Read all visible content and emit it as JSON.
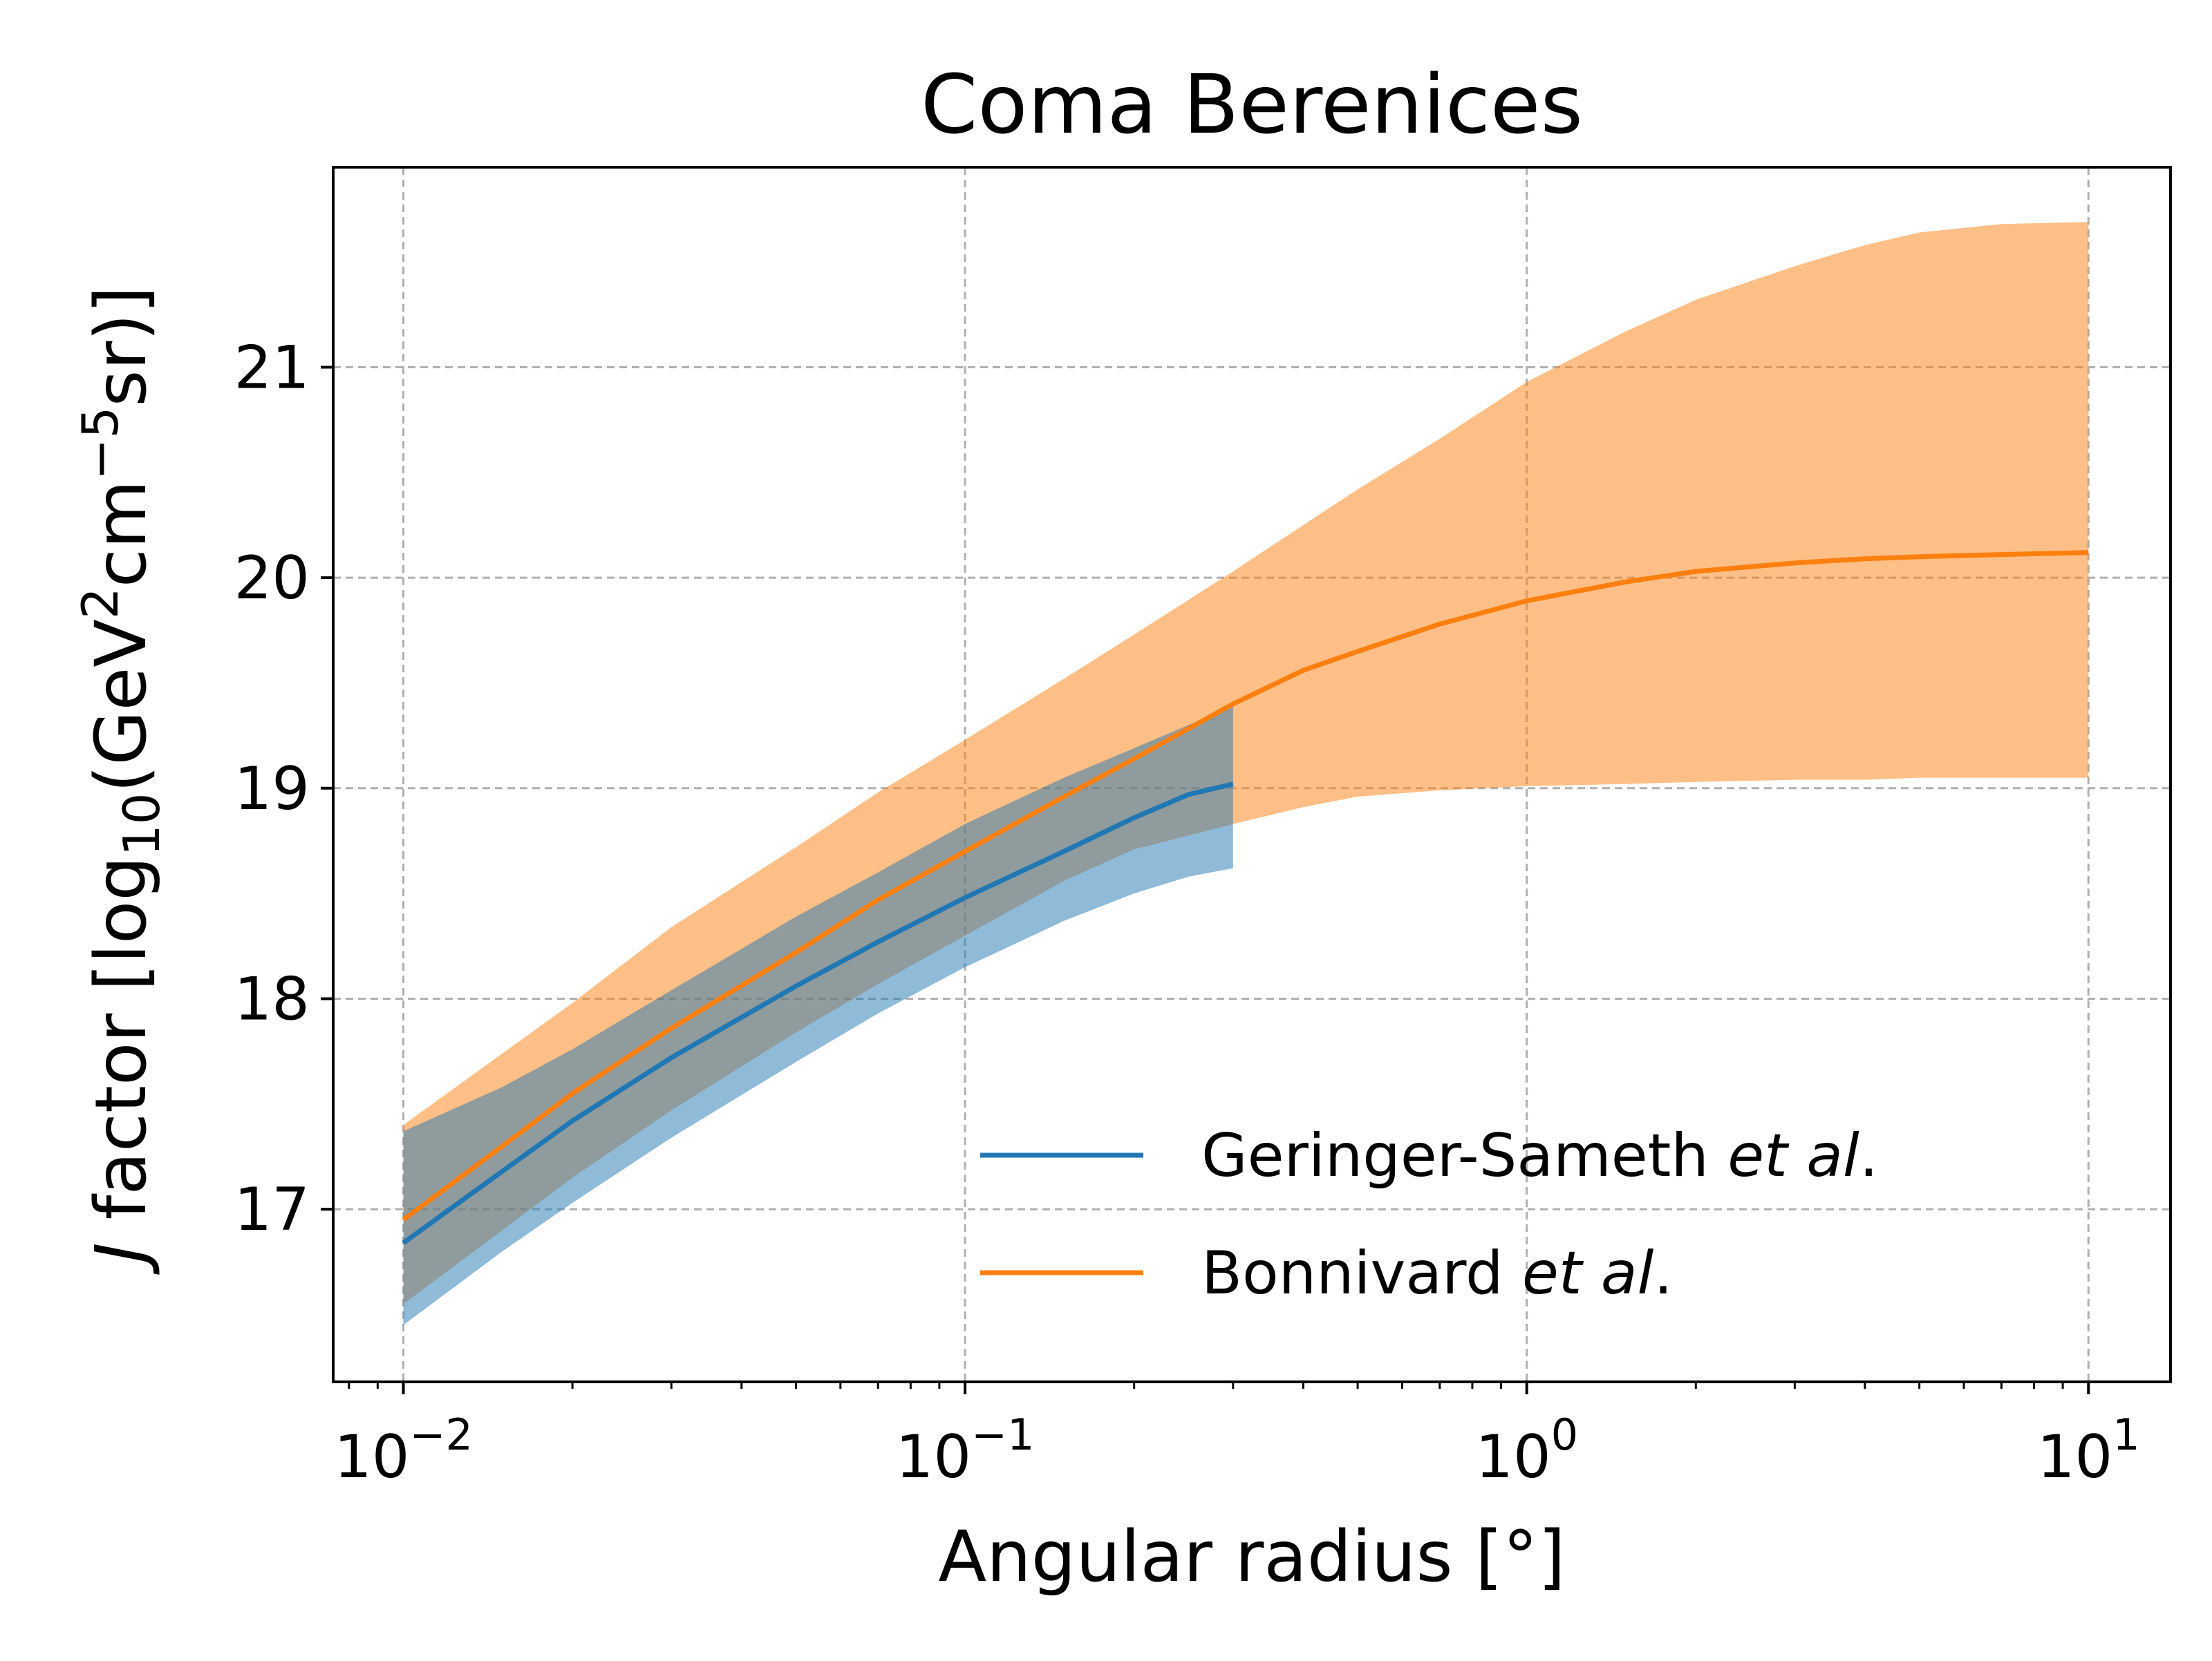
{
  "chart_data": {
    "type": "line",
    "title": "Coma Berenices",
    "xlabel": "Angular radius [°]",
    "ylabel": "J factor [log10(GeV2cm−5sr)]",
    "ylabel_parts": {
      "j": "J",
      "pre": " factor [log",
      "sub": "10",
      "mid1": "(GeV",
      "sup1": "2",
      "mid2": "cm",
      "sup2": "−5",
      "post": "sr)]"
    },
    "xscale": "log",
    "xlim": [
      0.0075,
      14
    ],
    "ylim": [
      16.18,
      21.95
    ],
    "grid": true,
    "legend_position": "lower right",
    "xticks": [
      {
        "value": 0.01,
        "base": "10",
        "exp": "−2"
      },
      {
        "value": 0.1,
        "base": "10",
        "exp": "−1"
      },
      {
        "value": 1,
        "base": "10",
        "exp": "0"
      },
      {
        "value": 10,
        "base": "10",
        "exp": "1"
      }
    ],
    "yticks": [
      17,
      18,
      19,
      20,
      21
    ],
    "series": [
      {
        "name": "Geringer-Sameth et al.",
        "legend_plain": "Geringer-Sameth ",
        "legend_italic": "et al",
        "legend_suffix": ".",
        "color": "#1f77b4",
        "band_color": "#1f77b4",
        "band_opacity": 0.5,
        "x": [
          0.01,
          0.015,
          0.02,
          0.03,
          0.05,
          0.07,
          0.1,
          0.15,
          0.2,
          0.25,
          0.3
        ],
        "y": [
          16.84,
          17.18,
          17.42,
          17.72,
          18.06,
          18.27,
          18.48,
          18.7,
          18.86,
          18.97,
          19.02
        ],
        "y_low": [
          16.45,
          16.8,
          17.03,
          17.34,
          17.7,
          17.93,
          18.15,
          18.37,
          18.5,
          18.58,
          18.62
        ],
        "y_high": [
          17.37,
          17.58,
          17.76,
          18.04,
          18.39,
          18.6,
          18.83,
          19.05,
          19.19,
          19.3,
          19.39
        ]
      },
      {
        "name": "Bonnivard et al.",
        "legend_plain": "Bonnivard ",
        "legend_italic": "et al",
        "legend_suffix": ".",
        "color": "#ff7f0e",
        "band_color": "#ff7f0e",
        "band_opacity": 0.5,
        "x": [
          0.01,
          0.015,
          0.02,
          0.03,
          0.05,
          0.07,
          0.1,
          0.15,
          0.2,
          0.3,
          0.4,
          0.5,
          0.7,
          1.0,
          1.5,
          2.0,
          3.0,
          4.0,
          5.0,
          7.0,
          10.0
        ],
        "y": [
          16.95,
          17.3,
          17.55,
          17.86,
          18.22,
          18.47,
          18.7,
          18.96,
          19.14,
          19.4,
          19.56,
          19.65,
          19.78,
          19.89,
          19.98,
          20.03,
          20.07,
          20.09,
          20.1,
          20.11,
          20.12
        ],
        "y_low": [
          16.55,
          16.9,
          17.15,
          17.47,
          17.84,
          18.07,
          18.3,
          18.56,
          18.71,
          18.83,
          18.91,
          18.96,
          18.99,
          19.01,
          19.02,
          19.03,
          19.04,
          19.04,
          19.05,
          19.05,
          19.05
        ],
        "y_high": [
          17.4,
          17.74,
          17.98,
          18.34,
          18.72,
          18.98,
          19.23,
          19.52,
          19.73,
          20.03,
          20.25,
          20.42,
          20.66,
          20.93,
          21.17,
          21.32,
          21.48,
          21.58,
          21.64,
          21.68,
          21.69
        ]
      }
    ]
  }
}
